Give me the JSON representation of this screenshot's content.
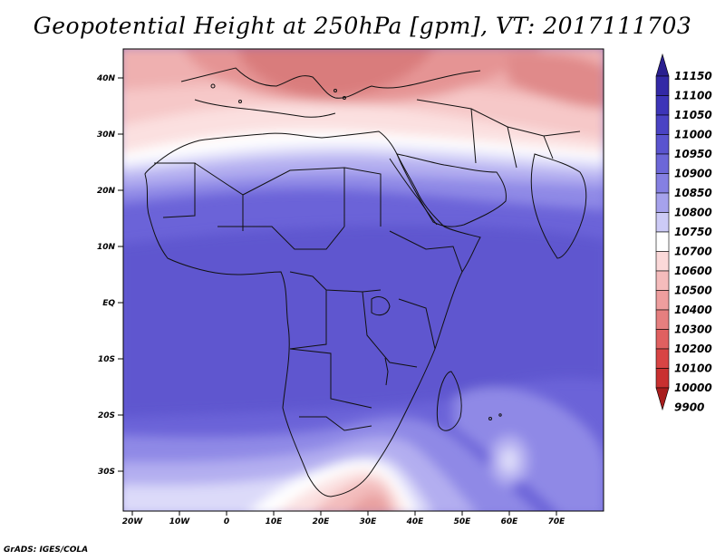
{
  "title": "Geopotential Height at 250hPa [gpm], VT: 2017111703",
  "credit": "GrADS: IGES/COLA",
  "map": {
    "lon_range": [
      -23,
      79
    ],
    "lat_range": [
      -37,
      45
    ],
    "lat_ticks": [
      "40N",
      "30N",
      "20N",
      "10N",
      "EQ",
      "10S",
      "20S",
      "30S"
    ],
    "lon_ticks": [
      "20W",
      "10W",
      "0",
      "10E",
      "20E",
      "30E",
      "40E",
      "50E",
      "60E",
      "70E"
    ],
    "field": "250 hPa geopotential height, shaded: low heights (red) over the Mediterranean and far south, high heights (blue) across the tropics"
  },
  "colorbar": {
    "levels": [
      "11150",
      "11100",
      "11050",
      "11000",
      "10950",
      "10900",
      "10850",
      "10800",
      "10750",
      "10700",
      "10600",
      "10500",
      "10400",
      "10300",
      "10200",
      "10100",
      "10000",
      "9900"
    ],
    "colors": {
      "top": "#2a1f8f",
      "mid": "#ffffff",
      "bottom": "#a81d1d"
    }
  }
}
